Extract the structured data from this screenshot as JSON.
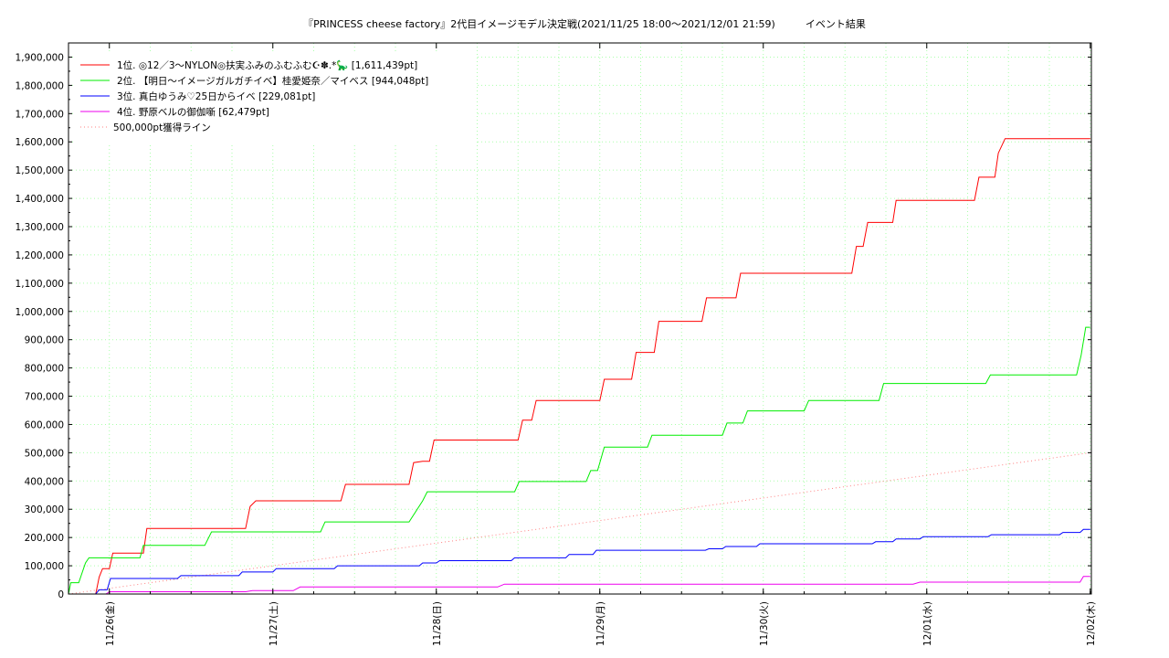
{
  "chart_data": {
    "type": "line",
    "title": "『PRINCESS cheese factory』2代目イメージモデル決定戦(2021/11/25 18:00～2021/12/01 21:59)　　　イベント結果",
    "xlabel": "",
    "ylabel": "",
    "ylim": [
      0,
      1950000
    ],
    "xlim": [
      "2021-11-25 18:00",
      "2021-12-02 00:10"
    ],
    "grid": true,
    "legend_position": "top-left",
    "y_ticks": [
      "0",
      "100,000",
      "200,000",
      "300,000",
      "400,000",
      "500,000",
      "600,000",
      "700,000",
      "800,000",
      "900,000",
      "1,000,000",
      "1,100,000",
      "1,200,000",
      "1,300,000",
      "1,400,000",
      "1,500,000",
      "1,600,000",
      "1,700,000",
      "1,800,000",
      "1,900,000"
    ],
    "x_ticks": [
      {
        "x": "2021-11-26",
        "label": "11/26(金)"
      },
      {
        "x": "2021-11-27",
        "label": "11/27(土)"
      },
      {
        "x": "2021-11-28",
        "label": "11/28(日)"
      },
      {
        "x": "2021-11-29",
        "label": "11/29(月)"
      },
      {
        "x": "2021-11-30",
        "label": "11/30(火)"
      },
      {
        "x": "2021-12-01",
        "label": "12/01(水)"
      },
      {
        "x": "2021-12-02",
        "label": "12/02(木)"
      }
    ],
    "series": [
      {
        "name": "1位. ◎12／3〜NYLON◎扶実ふみのふむふむ☪︎✽.*🦕 [1,611,439pt]",
        "color": "#ff0000",
        "style": "solid",
        "points": [
          [
            "2021-11-25 18:00",
            0
          ],
          [
            "2021-11-25 22:00",
            0
          ],
          [
            "2021-11-25 22:30",
            60000
          ],
          [
            "2021-11-25 23:00",
            90000
          ],
          [
            "2021-11-26 00:00",
            90000
          ],
          [
            "2021-11-26 00:30",
            145000
          ],
          [
            "2021-11-26 05:00",
            145000
          ],
          [
            "2021-11-26 05:30",
            232000
          ],
          [
            "2021-11-26 20:00",
            232000
          ],
          [
            "2021-11-26 20:40",
            310000
          ],
          [
            "2021-11-26 21:30",
            330000
          ],
          [
            "2021-11-27 10:00",
            330000
          ],
          [
            "2021-11-27 10:40",
            388000
          ],
          [
            "2021-11-27 20:00",
            388000
          ],
          [
            "2021-11-27 20:40",
            465000
          ],
          [
            "2021-11-27 22:00",
            470000
          ],
          [
            "2021-11-27 23:00",
            470000
          ],
          [
            "2021-11-27 23:40",
            545000
          ],
          [
            "2021-11-28 12:00",
            545000
          ],
          [
            "2021-11-28 12:40",
            615000
          ],
          [
            "2021-11-28 14:00",
            615000
          ],
          [
            "2021-11-28 14:40",
            685000
          ],
          [
            "2021-11-29 00:00",
            685000
          ],
          [
            "2021-11-29 00:40",
            760000
          ],
          [
            "2021-11-29 04:40",
            760000
          ],
          [
            "2021-11-29 05:20",
            855000
          ],
          [
            "2021-11-29 08:00",
            855000
          ],
          [
            "2021-11-29 08:40",
            965000
          ],
          [
            "2021-11-29 15:00",
            965000
          ],
          [
            "2021-11-29 15:40",
            1048000
          ],
          [
            "2021-11-29 20:00",
            1048000
          ],
          [
            "2021-11-29 20:40",
            1135000
          ],
          [
            "2021-11-30 13:00",
            1135000
          ],
          [
            "2021-11-30 13:40",
            1230000
          ],
          [
            "2021-11-30 14:40",
            1230000
          ],
          [
            "2021-11-30 15:20",
            1315000
          ],
          [
            "2021-11-30 19:00",
            1315000
          ],
          [
            "2021-11-30 19:30",
            1393000
          ],
          [
            "2021-12-01 07:00",
            1393000
          ],
          [
            "2021-12-01 07:40",
            1475000
          ],
          [
            "2021-12-01 10:00",
            1475000
          ],
          [
            "2021-12-01 10:30",
            1560000
          ],
          [
            "2021-12-01 11:30",
            1611439
          ],
          [
            "2021-12-02 00:00",
            1611439
          ]
        ]
      },
      {
        "name": "2位. 【明日〜イメージガルガチイベ】桂愛姫奈／マイベス [944,048pt]",
        "color": "#00ee00",
        "style": "solid",
        "points": [
          [
            "2021-11-25 18:00",
            0
          ],
          [
            "2021-11-25 18:20",
            40000
          ],
          [
            "2021-11-25 19:30",
            40000
          ],
          [
            "2021-11-25 20:30",
            110000
          ],
          [
            "2021-11-25 21:00",
            128000
          ],
          [
            "2021-11-26 04:30",
            128000
          ],
          [
            "2021-11-26 05:00",
            172000
          ],
          [
            "2021-11-26 14:00",
            172000
          ],
          [
            "2021-11-26 15:00",
            220000
          ],
          [
            "2021-11-27 07:00",
            220000
          ],
          [
            "2021-11-27 07:40",
            255000
          ],
          [
            "2021-11-27 20:00",
            255000
          ],
          [
            "2021-11-27 22:00",
            330000
          ],
          [
            "2021-11-27 22:40",
            362000
          ],
          [
            "2021-11-28 11:30",
            362000
          ],
          [
            "2021-11-28 12:10",
            398000
          ],
          [
            "2021-11-28 22:00",
            398000
          ],
          [
            "2021-11-28 22:40",
            437000
          ],
          [
            "2021-11-28 23:40",
            437000
          ],
          [
            "2021-11-29 00:40",
            520000
          ],
          [
            "2021-11-29 07:00",
            520000
          ],
          [
            "2021-11-29 07:40",
            562000
          ],
          [
            "2021-11-29 18:00",
            562000
          ],
          [
            "2021-11-29 18:40",
            605000
          ],
          [
            "2021-11-29 21:00",
            605000
          ],
          [
            "2021-11-29 21:40",
            648000
          ],
          [
            "2021-11-30 06:00",
            648000
          ],
          [
            "2021-11-30 06:40",
            685000
          ],
          [
            "2021-11-30 17:00",
            685000
          ],
          [
            "2021-11-30 17:40",
            745000
          ],
          [
            "2021-12-01 08:40",
            745000
          ],
          [
            "2021-12-01 09:20",
            775000
          ],
          [
            "2021-12-01 22:00",
            775000
          ],
          [
            "2021-12-01 22:40",
            845000
          ],
          [
            "2021-12-01 23:20",
            944048
          ],
          [
            "2021-12-02 00:00",
            944048
          ]
        ]
      },
      {
        "name": "3位. 真白ゆうみ♡25日からイベ [229,081pt]",
        "color": "#0000ff",
        "style": "solid",
        "points": [
          [
            "2021-11-25 18:00",
            0
          ],
          [
            "2021-11-25 22:00",
            0
          ],
          [
            "2021-11-25 22:30",
            15000
          ],
          [
            "2021-11-25 23:40",
            15000
          ],
          [
            "2021-11-26 00:10",
            55000
          ],
          [
            "2021-11-26 10:00",
            55000
          ],
          [
            "2021-11-26 10:30",
            65000
          ],
          [
            "2021-11-26 19:00",
            65000
          ],
          [
            "2021-11-26 19:30",
            78000
          ],
          [
            "2021-11-27 00:00",
            78000
          ],
          [
            "2021-11-27 00:30",
            90000
          ],
          [
            "2021-11-27 09:00",
            90000
          ],
          [
            "2021-11-27 09:30",
            100000
          ],
          [
            "2021-11-27 21:30",
            100000
          ],
          [
            "2021-11-27 22:00",
            110000
          ],
          [
            "2021-11-28 00:00",
            110000
          ],
          [
            "2021-11-28 00:30",
            118000
          ],
          [
            "2021-11-28 11:00",
            118000
          ],
          [
            "2021-11-28 11:30",
            128000
          ],
          [
            "2021-11-28 19:00",
            128000
          ],
          [
            "2021-11-28 19:30",
            140000
          ],
          [
            "2021-11-28 23:00",
            140000
          ],
          [
            "2021-11-28 23:30",
            155000
          ],
          [
            "2021-11-29 15:30",
            155000
          ],
          [
            "2021-11-29 16:00",
            160000
          ],
          [
            "2021-11-29 18:00",
            160000
          ],
          [
            "2021-11-29 18:30",
            168000
          ],
          [
            "2021-11-29 23:00",
            168000
          ],
          [
            "2021-11-29 23:30",
            178000
          ],
          [
            "2021-11-30 16:00",
            178000
          ],
          [
            "2021-11-30 16:30",
            185000
          ],
          [
            "2021-11-30 19:00",
            185000
          ],
          [
            "2021-11-30 19:30",
            195000
          ],
          [
            "2021-11-30 23:00",
            195000
          ],
          [
            "2021-11-30 23:30",
            203000
          ],
          [
            "2021-12-01 09:00",
            203000
          ],
          [
            "2021-12-01 09:30",
            210000
          ],
          [
            "2021-12-01 19:30",
            210000
          ],
          [
            "2021-12-01 20:00",
            218000
          ],
          [
            "2021-12-01 22:30",
            218000
          ],
          [
            "2021-12-01 23:00",
            229081
          ],
          [
            "2021-12-02 00:00",
            229081
          ]
        ]
      },
      {
        "name": "4位. 野原ベルの御伽噺 [62,479pt]",
        "color": "#ee00ee",
        "style": "solid",
        "points": [
          [
            "2021-11-25 18:00",
            0
          ],
          [
            "2021-11-25 23:30",
            0
          ],
          [
            "2021-11-26 00:00",
            8000
          ],
          [
            "2021-11-26 20:00",
            8000
          ],
          [
            "2021-11-26 21:00",
            12000
          ],
          [
            "2021-11-27 03:00",
            12000
          ],
          [
            "2021-11-27 04:00",
            25000
          ],
          [
            "2021-11-28 09:00",
            25000
          ],
          [
            "2021-11-28 10:00",
            35000
          ],
          [
            "2021-11-30 22:00",
            35000
          ],
          [
            "2021-11-30 23:00",
            42000
          ],
          [
            "2021-12-01 22:30",
            42000
          ],
          [
            "2021-12-01 23:00",
            62479
          ],
          [
            "2021-12-02 00:00",
            62479
          ]
        ]
      },
      {
        "name": "500,000pt獲得ライン",
        "color": "#ff8080",
        "style": "dotted",
        "points": [
          [
            "2021-11-25 18:00",
            0
          ],
          [
            "2021-12-02 00:00",
            500000
          ]
        ]
      }
    ]
  }
}
